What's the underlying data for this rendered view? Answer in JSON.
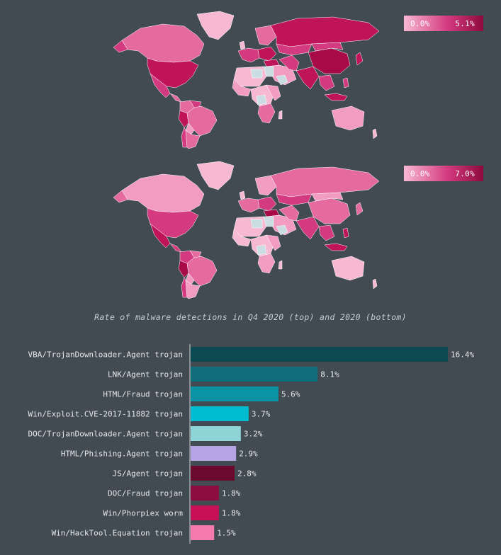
{
  "maps": {
    "top": {
      "legend_min": "0.0%",
      "legend_max": "5.1%"
    },
    "bottom": {
      "legend_min": "0.0%",
      "legend_max": "7.0%"
    },
    "caption": "Rate of malware detections in Q4 2020 (top) and 2020 (bottom)"
  },
  "colors": {
    "background": "#424a52",
    "map_low": "#f7b9d2",
    "map_high": "#8f0a3c",
    "map_missing": "#c9dde3"
  },
  "chart_data": {
    "type": "bar",
    "orientation": "horizontal",
    "categories": [
      "VBA/TrojanDownloader.Agent trojan",
      "LNK/Agent trojan",
      "HTML/Fraud trojan",
      "Win/Exploit.CVE-2017-11882 trojan",
      "DOC/TrojanDownloader.Agent trojan",
      "HTML/Phishing.Agent trojan",
      "JS/Agent trojan",
      "DOC/Fraud trojan",
      "Win/Phorpiex worm",
      "Win/HackTool.Equation trojan"
    ],
    "values": [
      16.4,
      8.1,
      5.6,
      3.7,
      3.2,
      2.9,
      2.8,
      1.8,
      1.8,
      1.5
    ],
    "value_labels": [
      "16.4%",
      "8.1%",
      "5.6%",
      "3.7%",
      "3.2%",
      "2.9%",
      "2.8%",
      "1.8%",
      "1.8%",
      "1.5%"
    ],
    "bar_colors": [
      "#0c4a52",
      "#0f6e7a",
      "#0a93a3",
      "#00bcd0",
      "#8fd4d6",
      "#b4a4e3",
      "#6a0a2e",
      "#8c0c3e",
      "#c81057",
      "#f47ab0"
    ],
    "title": "",
    "xlabel": "",
    "ylabel": "",
    "xlim": [
      0,
      16.4
    ],
    "grid": false,
    "legend": "none"
  }
}
